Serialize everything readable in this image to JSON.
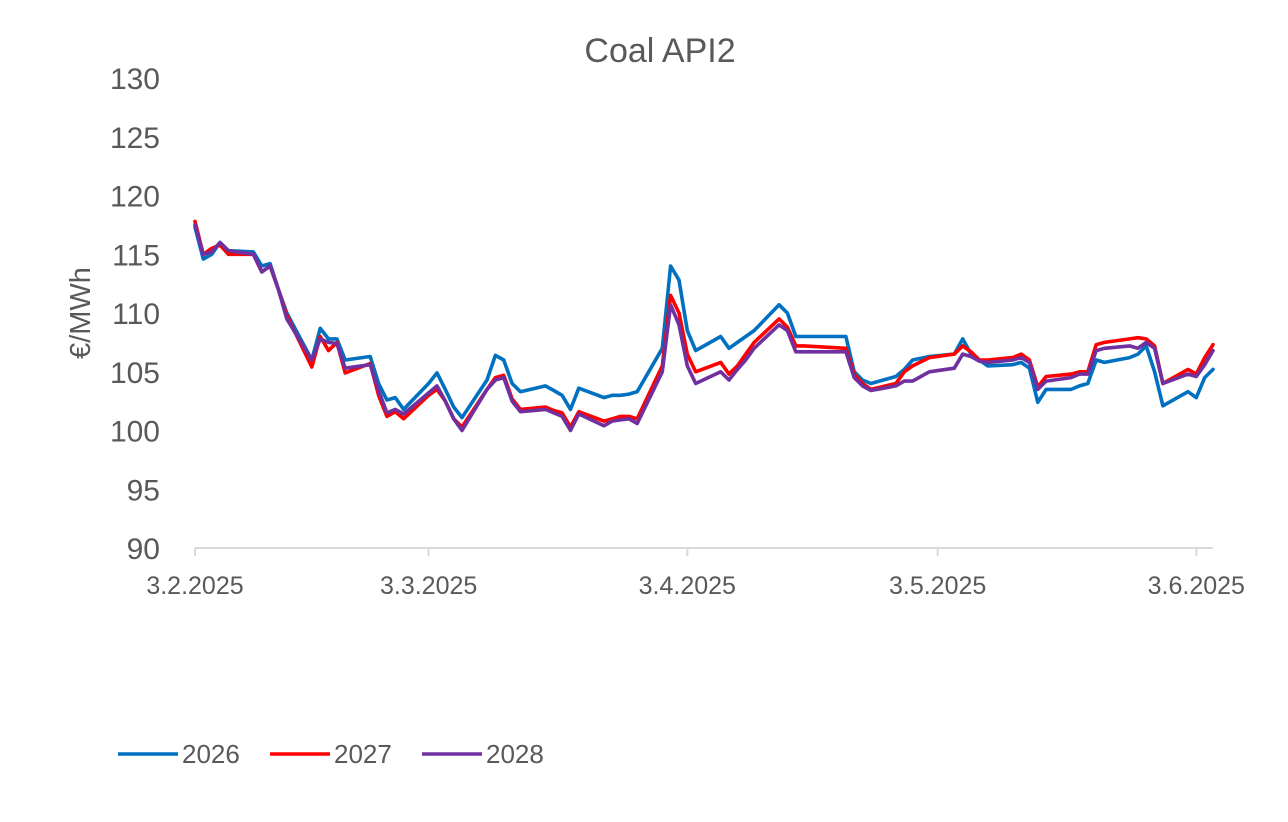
{
  "chart_data": {
    "type": "line",
    "title": "Coal API2",
    "xlabel": "",
    "ylabel": "€/MWh",
    "ylim": [
      90,
      130
    ],
    "y_ticks": [
      "90",
      "95",
      "100",
      "105",
      "110",
      "115",
      "120",
      "125",
      "130"
    ],
    "x_ticks": [
      "3.2.2025",
      "3.3.2025",
      "3.4.2025",
      "3.5.2025",
      "3.6.2025"
    ],
    "grid": false,
    "legend_position": "bottom-left",
    "series": [
      {
        "name": "2026",
        "color": "#0070C0",
        "points": [
          [
            "3.2.2025",
            117.3
          ],
          [
            "4.2.2025",
            114.6
          ],
          [
            "5.2.2025",
            115.0
          ],
          [
            "6.2.2025",
            116.0
          ],
          [
            "7.2.2025",
            115.3
          ],
          [
            "10.2.2025",
            115.2
          ],
          [
            "11.2.2025",
            114.0
          ],
          [
            "12.2.2025",
            114.2
          ],
          [
            "13.2.2025",
            112.0
          ],
          [
            "14.2.2025",
            110.0
          ],
          [
            "17.2.2025",
            106.0
          ],
          [
            "18.2.2025",
            108.7
          ],
          [
            "19.2.2025",
            107.8
          ],
          [
            "20.2.2025",
            107.8
          ],
          [
            "21.2.2025",
            106.0
          ],
          [
            "24.2.2025",
            106.3
          ],
          [
            "25.2.2025",
            104.0
          ],
          [
            "26.2.2025",
            102.6
          ],
          [
            "27.2.2025",
            102.8
          ],
          [
            "28.2.2025",
            101.8
          ],
          [
            "3.3.2025",
            104.0
          ],
          [
            "4.3.2025",
            104.9
          ],
          [
            "5.3.2025",
            103.5
          ],
          [
            "6.3.2025",
            102.0
          ],
          [
            "7.3.2025",
            101.1
          ],
          [
            "10.3.2025",
            104.3
          ],
          [
            "11.3.2025",
            106.4
          ],
          [
            "12.3.2025",
            106.0
          ],
          [
            "13.3.2025",
            104.0
          ],
          [
            "14.3.2025",
            103.3
          ],
          [
            "17.3.2025",
            103.8
          ],
          [
            "18.3.2025",
            103.4
          ],
          [
            "19.3.2025",
            103.0
          ],
          [
            "20.3.2025",
            101.8
          ],
          [
            "21.3.2025",
            103.6
          ],
          [
            "24.3.2025",
            102.8
          ],
          [
            "25.3.2025",
            103.0
          ],
          [
            "26.3.2025",
            103.0
          ],
          [
            "27.3.2025",
            103.1
          ],
          [
            "28.3.2025",
            103.3
          ],
          [
            "31.3.2025",
            107.0
          ],
          [
            "1.4.2025",
            114.0
          ],
          [
            "2.4.2025",
            112.8
          ],
          [
            "3.4.2025",
            108.5
          ],
          [
            "4.4.2025",
            106.8
          ],
          [
            "7.4.2025",
            108.0
          ],
          [
            "8.4.2025",
            107.0
          ],
          [
            "9.4.2025",
            107.5
          ],
          [
            "10.4.2025",
            108.0
          ],
          [
            "11.4.2025",
            108.5
          ],
          [
            "14.4.2025",
            110.7
          ],
          [
            "15.4.2025",
            110.0
          ],
          [
            "16.4.2025",
            108.0
          ],
          [
            "17.4.2025",
            108.0
          ],
          [
            "22.4.2025",
            108.0
          ],
          [
            "23.4.2025",
            105.0
          ],
          [
            "24.4.2025",
            104.3
          ],
          [
            "25.4.2025",
            104.0
          ],
          [
            "28.4.2025",
            104.6
          ],
          [
            "29.4.2025",
            105.2
          ],
          [
            "30.4.2025",
            106.0
          ],
          [
            "2.5.2025",
            106.3
          ],
          [
            "5.5.2025",
            106.5
          ],
          [
            "6.5.2025",
            107.8
          ],
          [
            "7.5.2025",
            106.5
          ],
          [
            "8.5.2025",
            106.0
          ],
          [
            "9.5.2025",
            105.5
          ],
          [
            "12.5.2025",
            105.6
          ],
          [
            "13.5.2025",
            105.8
          ],
          [
            "14.5.2025",
            105.3
          ],
          [
            "15.5.2025",
            102.4
          ],
          [
            "16.5.2025",
            103.5
          ],
          [
            "19.5.2025",
            103.5
          ],
          [
            "20.5.2025",
            103.8
          ],
          [
            "21.5.2025",
            104.0
          ],
          [
            "22.5.2025",
            106.0
          ],
          [
            "23.5.2025",
            105.8
          ],
          [
            "26.5.2025",
            106.2
          ],
          [
            "27.5.2025",
            106.5
          ],
          [
            "28.5.2025",
            107.2
          ],
          [
            "29.5.2025",
            105.0
          ],
          [
            "30.5.2025",
            102.1
          ],
          [
            "2.6.2025",
            103.3
          ],
          [
            "3.6.2025",
            102.8
          ],
          [
            "4.6.2025",
            104.5
          ],
          [
            "5.6.2025",
            105.2
          ]
        ]
      },
      {
        "name": "2027",
        "color": "#FF0000",
        "points": [
          [
            "3.2.2025",
            117.8
          ],
          [
            "4.2.2025",
            115.0
          ],
          [
            "5.2.2025",
            115.5
          ],
          [
            "6.2.2025",
            115.8
          ],
          [
            "7.2.2025",
            115.0
          ],
          [
            "10.2.2025",
            115.0
          ],
          [
            "11.2.2025",
            113.5
          ],
          [
            "12.2.2025",
            114.0
          ],
          [
            "13.2.2025",
            112.0
          ],
          [
            "14.2.2025",
            109.8
          ],
          [
            "17.2.2025",
            105.4
          ],
          [
            "18.2.2025",
            108.0
          ],
          [
            "19.2.2025",
            106.8
          ],
          [
            "20.2.2025",
            107.5
          ],
          [
            "21.2.2025",
            104.9
          ],
          [
            "24.2.2025",
            105.7
          ],
          [
            "25.2.2025",
            103.0
          ],
          [
            "26.2.2025",
            101.2
          ],
          [
            "27.2.2025",
            101.6
          ],
          [
            "28.2.2025",
            101.0
          ],
          [
            "3.3.2025",
            103.0
          ],
          [
            "4.3.2025",
            103.5
          ],
          [
            "5.3.2025",
            102.5
          ],
          [
            "6.3.2025",
            101.0
          ],
          [
            "7.3.2025",
            100.3
          ],
          [
            "10.3.2025",
            103.5
          ],
          [
            "11.3.2025",
            104.5
          ],
          [
            "12.3.2025",
            104.7
          ],
          [
            "13.3.2025",
            102.7
          ],
          [
            "14.3.2025",
            101.8
          ],
          [
            "17.3.2025",
            102.0
          ],
          [
            "18.3.2025",
            101.7
          ],
          [
            "19.3.2025",
            101.5
          ],
          [
            "20.3.2025",
            100.3
          ],
          [
            "21.3.2025",
            101.6
          ],
          [
            "24.3.2025",
            100.8
          ],
          [
            "25.3.2025",
            101.0
          ],
          [
            "26.3.2025",
            101.2
          ],
          [
            "27.3.2025",
            101.2
          ],
          [
            "28.3.2025",
            101.0
          ],
          [
            "31.3.2025",
            105.5
          ],
          [
            "1.4.2025",
            111.5
          ],
          [
            "2.4.2025",
            110.0
          ],
          [
            "3.4.2025",
            106.5
          ],
          [
            "4.4.2025",
            105.0
          ],
          [
            "7.4.2025",
            105.8
          ],
          [
            "8.4.2025",
            104.8
          ],
          [
            "9.4.2025",
            105.5
          ],
          [
            "10.4.2025",
            106.5
          ],
          [
            "11.4.2025",
            107.5
          ],
          [
            "14.4.2025",
            109.5
          ],
          [
            "15.4.2025",
            108.8
          ],
          [
            "16.4.2025",
            107.2
          ],
          [
            "17.4.2025",
            107.2
          ],
          [
            "22.4.2025",
            107.0
          ],
          [
            "23.4.2025",
            104.8
          ],
          [
            "24.4.2025",
            104.0
          ],
          [
            "25.4.2025",
            103.5
          ],
          [
            "28.4.2025",
            104.0
          ],
          [
            "29.4.2025",
            105.0
          ],
          [
            "30.4.2025",
            105.5
          ],
          [
            "2.5.2025",
            106.2
          ],
          [
            "5.5.2025",
            106.5
          ],
          [
            "6.5.2025",
            107.2
          ],
          [
            "7.5.2025",
            106.7
          ],
          [
            "8.5.2025",
            106.0
          ],
          [
            "9.5.2025",
            106.0
          ],
          [
            "12.5.2025",
            106.2
          ],
          [
            "13.5.2025",
            106.5
          ],
          [
            "14.5.2025",
            106.0
          ],
          [
            "15.5.2025",
            103.7
          ],
          [
            "16.5.2025",
            104.6
          ],
          [
            "19.5.2025",
            104.8
          ],
          [
            "20.5.2025",
            105.0
          ],
          [
            "21.5.2025",
            105.0
          ],
          [
            "22.5.2025",
            107.3
          ],
          [
            "23.5.2025",
            107.5
          ],
          [
            "26.5.2025",
            107.8
          ],
          [
            "27.5.2025",
            107.9
          ],
          [
            "28.5.2025",
            107.8
          ],
          [
            "29.5.2025",
            107.2
          ],
          [
            "30.5.2025",
            104.0
          ],
          [
            "2.6.2025",
            105.2
          ],
          [
            "3.6.2025",
            104.8
          ],
          [
            "4.6.2025",
            106.2
          ],
          [
            "5.6.2025",
            107.3
          ]
        ]
      },
      {
        "name": "2028",
        "color": "#7030A0",
        "points": [
          [
            "3.2.2025",
            117.5
          ],
          [
            "4.2.2025",
            115.0
          ],
          [
            "5.2.2025",
            115.2
          ],
          [
            "6.2.2025",
            116.0
          ],
          [
            "7.2.2025",
            115.3
          ],
          [
            "10.2.2025",
            115.0
          ],
          [
            "11.2.2025",
            113.5
          ],
          [
            "12.2.2025",
            114.0
          ],
          [
            "13.2.2025",
            112.0
          ],
          [
            "14.2.2025",
            109.5
          ],
          [
            "17.2.2025",
            106.0
          ],
          [
            "18.2.2025",
            107.8
          ],
          [
            "19.2.2025",
            107.5
          ],
          [
            "20.2.2025",
            107.4
          ],
          [
            "21.2.2025",
            105.3
          ],
          [
            "24.2.2025",
            105.6
          ],
          [
            "25.2.2025",
            103.4
          ],
          [
            "26.2.2025",
            101.5
          ],
          [
            "27.2.2025",
            101.8
          ],
          [
            "28.2.2025",
            101.4
          ],
          [
            "3.3.2025",
            103.2
          ],
          [
            "4.3.2025",
            103.8
          ],
          [
            "5.3.2025",
            102.5
          ],
          [
            "6.3.2025",
            101.0
          ],
          [
            "7.3.2025",
            100.0
          ],
          [
            "10.3.2025",
            103.5
          ],
          [
            "11.3.2025",
            104.3
          ],
          [
            "12.3.2025",
            104.5
          ],
          [
            "13.3.2025",
            102.5
          ],
          [
            "14.3.2025",
            101.6
          ],
          [
            "17.3.2025",
            101.8
          ],
          [
            "18.3.2025",
            101.5
          ],
          [
            "19.3.2025",
            101.2
          ],
          [
            "20.3.2025",
            100.0
          ],
          [
            "21.3.2025",
            101.4
          ],
          [
            "24.3.2025",
            100.4
          ],
          [
            "25.3.2025",
            100.8
          ],
          [
            "26.3.2025",
            100.9
          ],
          [
            "27.3.2025",
            101.0
          ],
          [
            "28.3.2025",
            100.6
          ],
          [
            "31.3.2025",
            105.0
          ],
          [
            "1.4.2025",
            110.7
          ],
          [
            "2.4.2025",
            109.0
          ],
          [
            "3.4.2025",
            105.5
          ],
          [
            "4.4.2025",
            104.0
          ],
          [
            "7.4.2025",
            105.0
          ],
          [
            "8.4.2025",
            104.3
          ],
          [
            "9.4.2025",
            105.2
          ],
          [
            "10.4.2025",
            106.0
          ],
          [
            "11.4.2025",
            107.0
          ],
          [
            "14.4.2025",
            109.0
          ],
          [
            "15.4.2025",
            108.5
          ],
          [
            "16.4.2025",
            106.7
          ],
          [
            "17.4.2025",
            106.7
          ],
          [
            "22.4.2025",
            106.7
          ],
          [
            "23.4.2025",
            104.5
          ],
          [
            "24.4.2025",
            103.8
          ],
          [
            "25.4.2025",
            103.4
          ],
          [
            "28.4.2025",
            103.8
          ],
          [
            "29.4.2025",
            104.2
          ],
          [
            "30.4.2025",
            104.2
          ],
          [
            "2.5.2025",
            105.0
          ],
          [
            "5.5.2025",
            105.3
          ],
          [
            "6.5.2025",
            106.5
          ],
          [
            "7.5.2025",
            106.3
          ],
          [
            "8.5.2025",
            105.9
          ],
          [
            "9.5.2025",
            105.8
          ],
          [
            "12.5.2025",
            106.0
          ],
          [
            "13.5.2025",
            106.2
          ],
          [
            "14.5.2025",
            105.8
          ],
          [
            "15.5.2025",
            103.5
          ],
          [
            "16.5.2025",
            104.2
          ],
          [
            "19.5.2025",
            104.5
          ],
          [
            "20.5.2025",
            104.8
          ],
          [
            "21.5.2025",
            104.8
          ],
          [
            "22.5.2025",
            106.8
          ],
          [
            "23.5.2025",
            107.0
          ],
          [
            "26.5.2025",
            107.2
          ],
          [
            "27.5.2025",
            107.0
          ],
          [
            "28.5.2025",
            107.5
          ],
          [
            "29.5.2025",
            107.0
          ],
          [
            "30.5.2025",
            104.0
          ],
          [
            "2.6.2025",
            104.8
          ],
          [
            "3.6.2025",
            104.6
          ],
          [
            "4.6.2025",
            105.6
          ],
          [
            "5.6.2025",
            106.8
          ]
        ]
      }
    ]
  }
}
